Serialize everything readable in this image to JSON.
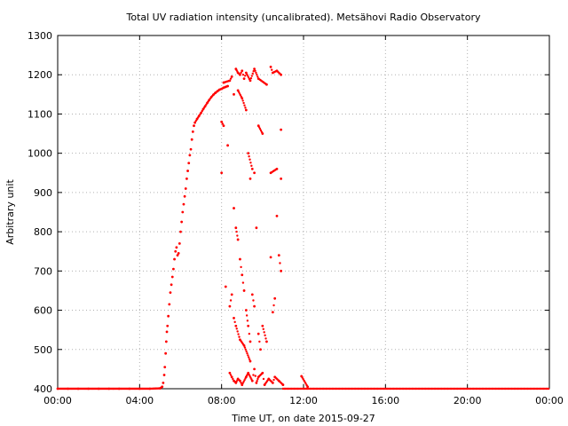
{
  "chart_data": {
    "type": "scatter",
    "title": "Total UV radiation intensity (uncalibrated). Metsähovi Radio Observatory",
    "xlabel": "Time UT, on date 2015-09-27",
    "ylabel": "Arbitrary unit",
    "xlim": [
      0,
      24
    ],
    "ylim": [
      400,
      1300
    ],
    "x_ticks": [
      {
        "value": 0,
        "label": "00:00"
      },
      {
        "value": 4,
        "label": "04:00"
      },
      {
        "value": 8,
        "label": "08:00"
      },
      {
        "value": 12,
        "label": "12:00"
      },
      {
        "value": 16,
        "label": "16:00"
      },
      {
        "value": 20,
        "label": "20:00"
      },
      {
        "value": 24,
        "label": "00:00"
      }
    ],
    "y_ticks": [
      400,
      500,
      600,
      700,
      800,
      900,
      1000,
      1100,
      1200,
      1300
    ],
    "grid": true,
    "marker_color": "#ff0000",
    "series": [
      {
        "x_unit": "hours UT",
        "points": [
          [
            0.0,
            400
          ],
          [
            0.5,
            400
          ],
          [
            1.0,
            400
          ],
          [
            1.5,
            400
          ],
          [
            2.0,
            400
          ],
          [
            2.5,
            400
          ],
          [
            3.0,
            400
          ],
          [
            3.5,
            400
          ],
          [
            4.0,
            400
          ],
          [
            4.5,
            400
          ],
          [
            5.0,
            401
          ],
          [
            5.1,
            405
          ],
          [
            5.15,
            415
          ],
          [
            5.2,
            435
          ],
          [
            5.23,
            455
          ],
          [
            5.27,
            490
          ],
          [
            5.3,
            520
          ],
          [
            5.33,
            545
          ],
          [
            5.36,
            560
          ],
          [
            5.4,
            585
          ],
          [
            5.45,
            615
          ],
          [
            5.5,
            645
          ],
          [
            5.55,
            665
          ],
          [
            5.6,
            685
          ],
          [
            5.65,
            705
          ],
          [
            5.7,
            730
          ],
          [
            5.75,
            750
          ],
          [
            5.8,
            760
          ],
          [
            5.85,
            740
          ],
          [
            5.9,
            745
          ],
          [
            5.95,
            770
          ],
          [
            6.0,
            800
          ],
          [
            6.05,
            825
          ],
          [
            6.1,
            850
          ],
          [
            6.15,
            870
          ],
          [
            6.2,
            890
          ],
          [
            6.25,
            910
          ],
          [
            6.3,
            935
          ],
          [
            6.35,
            955
          ],
          [
            6.4,
            975
          ],
          [
            6.45,
            995
          ],
          [
            6.5,
            1010
          ],
          [
            6.55,
            1035
          ],
          [
            6.6,
            1055
          ],
          [
            6.65,
            1070
          ],
          [
            6.7,
            1078
          ],
          [
            6.8,
            1087
          ],
          [
            6.9,
            1095
          ],
          [
            7.0,
            1103
          ],
          [
            7.1,
            1112
          ],
          [
            7.2,
            1120
          ],
          [
            7.3,
            1128
          ],
          [
            7.4,
            1136
          ],
          [
            7.5,
            1143
          ],
          [
            7.6,
            1149
          ],
          [
            7.7,
            1154
          ],
          [
            7.8,
            1158
          ],
          [
            7.9,
            1162
          ],
          [
            8.0,
            1164
          ],
          [
            8.1,
            1167
          ],
          [
            8.2,
            1169
          ],
          [
            8.3,
            1171
          ],
          [
            8.0,
            1080
          ],
          [
            8.1,
            1070
          ],
          [
            8.0,
            950
          ],
          [
            8.3,
            1020
          ],
          [
            8.1,
            1180
          ],
          [
            8.4,
            1185
          ],
          [
            8.5,
            1195
          ],
          [
            8.6,
            1150
          ],
          [
            8.7,
            1215
          ],
          [
            8.8,
            1205
          ],
          [
            8.9,
            1200
          ],
          [
            9.0,
            1210
          ],
          [
            9.1,
            1190
          ],
          [
            9.2,
            1205
          ],
          [
            9.4,
            1185
          ],
          [
            9.6,
            1215
          ],
          [
            9.8,
            1190
          ],
          [
            10.2,
            1175
          ],
          [
            10.4,
            1220
          ],
          [
            10.5,
            1205
          ],
          [
            10.7,
            1210
          ],
          [
            10.9,
            1200
          ],
          [
            8.6,
            860
          ],
          [
            8.7,
            810
          ],
          [
            8.8,
            780
          ],
          [
            8.9,
            730
          ],
          [
            9.0,
            690
          ],
          [
            9.1,
            650
          ],
          [
            9.2,
            600
          ],
          [
            9.3,
            560
          ],
          [
            9.4,
            520
          ],
          [
            9.5,
            640
          ],
          [
            9.6,
            610
          ],
          [
            9.7,
            810
          ],
          [
            9.8,
            540
          ],
          [
            9.9,
            500
          ],
          [
            10.0,
            560
          ],
          [
            10.2,
            520
          ],
          [
            10.4,
            735
          ],
          [
            10.5,
            595
          ],
          [
            10.6,
            630
          ],
          [
            10.7,
            840
          ],
          [
            10.8,
            740
          ],
          [
            10.9,
            700
          ],
          [
            8.8,
            1160
          ],
          [
            9.0,
            1140
          ],
          [
            9.2,
            1110
          ],
          [
            9.6,
            950
          ],
          [
            9.8,
            1070
          ],
          [
            10.0,
            1050
          ],
          [
            10.4,
            950
          ],
          [
            10.7,
            960
          ],
          [
            10.9,
            1060
          ],
          [
            8.2,
            660
          ],
          [
            8.4,
            610
          ],
          [
            8.5,
            640
          ],
          [
            8.6,
            580
          ],
          [
            8.7,
            560
          ],
          [
            8.9,
            525
          ],
          [
            9.1,
            510
          ],
          [
            9.4,
            470
          ],
          [
            8.4,
            440
          ],
          [
            8.5,
            430
          ],
          [
            8.6,
            420
          ],
          [
            8.7,
            415
          ],
          [
            8.8,
            425
          ],
          [
            8.9,
            420
          ],
          [
            9.0,
            410
          ],
          [
            9.2,
            430
          ],
          [
            9.3,
            440
          ],
          [
            9.5,
            420
          ],
          [
            9.6,
            450
          ],
          [
            9.7,
            415
          ],
          [
            9.8,
            430
          ],
          [
            10.0,
            440
          ],
          [
            10.1,
            410
          ],
          [
            10.3,
            425
          ],
          [
            10.5,
            415
          ],
          [
            10.6,
            430
          ],
          [
            10.8,
            420
          ],
          [
            11.0,
            410
          ],
          [
            11.9,
            432
          ],
          [
            12.2,
            405
          ],
          [
            9.3,
            1000
          ],
          [
            9.5,
            960
          ],
          [
            9.4,
            935
          ],
          [
            10.9,
            935
          ]
        ]
      }
    ]
  }
}
